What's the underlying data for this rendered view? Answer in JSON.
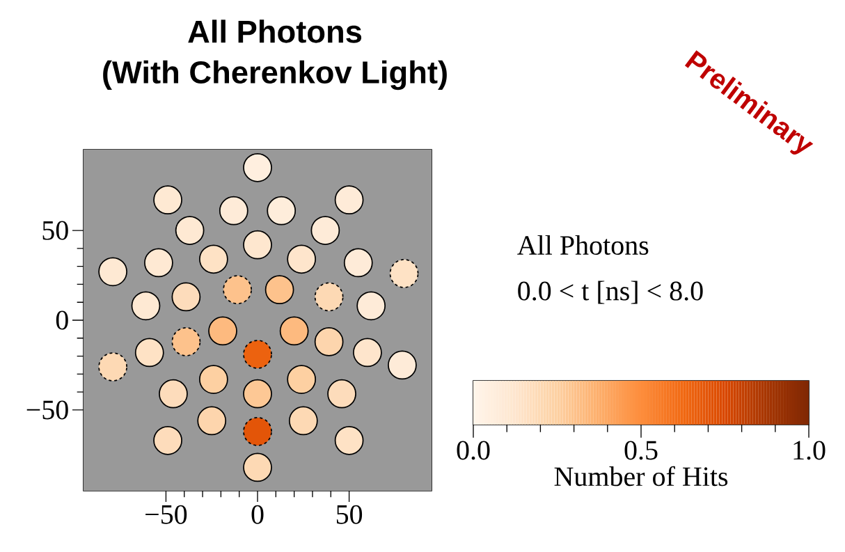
{
  "chart_data": {
    "type": "scatter",
    "title": "All Photons",
    "subtitle": "(With Cherenkov Light)",
    "series": [
      {
        "x": [
          0,
          -49,
          50,
          -13,
          13,
          -37,
          37,
          0,
          -79,
          -54,
          -24,
          24,
          55,
          -61,
          -39,
          12,
          62,
          -19,
          20,
          -59,
          39,
          60,
          79,
          -24,
          24,
          -46,
          0,
          46,
          -25,
          25,
          -49,
          50,
          0
        ],
        "values": [
          85,
          67,
          67,
          61,
          61,
          50,
          50,
          42,
          27,
          32,
          34,
          34,
          32,
          8,
          13,
          17,
          8,
          -6,
          -6,
          -18,
          -12,
          -18,
          -25,
          -33,
          -33,
          -41,
          -41,
          -41,
          -56,
          -56,
          -67,
          -67,
          -82
        ],
        "cvalues": [
          0.05,
          0.1,
          0.08,
          0.08,
          0.07,
          0.1,
          0.08,
          0.12,
          0.1,
          0.1,
          0.15,
          0.13,
          0.08,
          0.1,
          0.18,
          0.3,
          0.08,
          0.33,
          0.33,
          0.15,
          0.22,
          0.13,
          0.08,
          0.25,
          0.25,
          0.18,
          0.28,
          0.18,
          0.22,
          0.2,
          0.18,
          0.15,
          0.2
        ],
        "colors": [
          "#ffefdf",
          "#fee9d3",
          "#feebd8",
          "#feebd8",
          "#feeddb",
          "#fee9d3",
          "#feebd8",
          "#fee7cf",
          "#fee9d3",
          "#fee9d3",
          "#fee2c5",
          "#fee5cc",
          "#feebd8",
          "#fee9d3",
          "#fddcbb",
          "#fdc28c",
          "#feebd8",
          "#fdba7f",
          "#fdba7f",
          "#fee2c5",
          "#fdd5ad",
          "#fee5cc",
          "#feebd8",
          "#fdd0a2",
          "#fdd0a2",
          "#fddcbb",
          "#fdc895",
          "#fddcbb",
          "#fdd5ad",
          "#fdd9b4",
          "#fddcbb",
          "#fee2c5",
          "#fdd9b4"
        ],
        "line_style": "solid"
      },
      {
        "x": [
          80,
          -11,
          39,
          -79,
          -39,
          0,
          0
        ],
        "values": [
          26,
          17,
          13,
          -26,
          -12,
          -19,
          -62
        ],
        "cvalues": [
          0.15,
          0.3,
          0.2,
          0.2,
          0.3,
          0.65,
          0.7
        ],
        "colors": [
          "#fee2c5",
          "#fdc28c",
          "#fdd9b4",
          "#fdd9b4",
          "#fdc28c",
          "#ec620f",
          "#e35508"
        ],
        "line_style": "dashed"
      }
    ],
    "marker": "circle",
    "xlim": [
      -95,
      95
    ],
    "ylim": [
      -95,
      95
    ],
    "xticks": [
      {
        "value": -50,
        "label": "−50"
      },
      0,
      50
    ],
    "yticks": [
      {
        "value": -50,
        "label": "−50"
      },
      0,
      50
    ],
    "clim": [
      0,
      1
    ],
    "cticks": [
      {
        "value": 0,
        "label": "0.0"
      },
      {
        "value": 0.5,
        "label": "0.5"
      },
      {
        "value": 1,
        "label": "1.0"
      }
    ],
    "clabel": "Number of Hits",
    "annotations": [
      "All Photons",
      "0.0 < t [ns] < 8.0",
      "Preliminary"
    ]
  }
}
